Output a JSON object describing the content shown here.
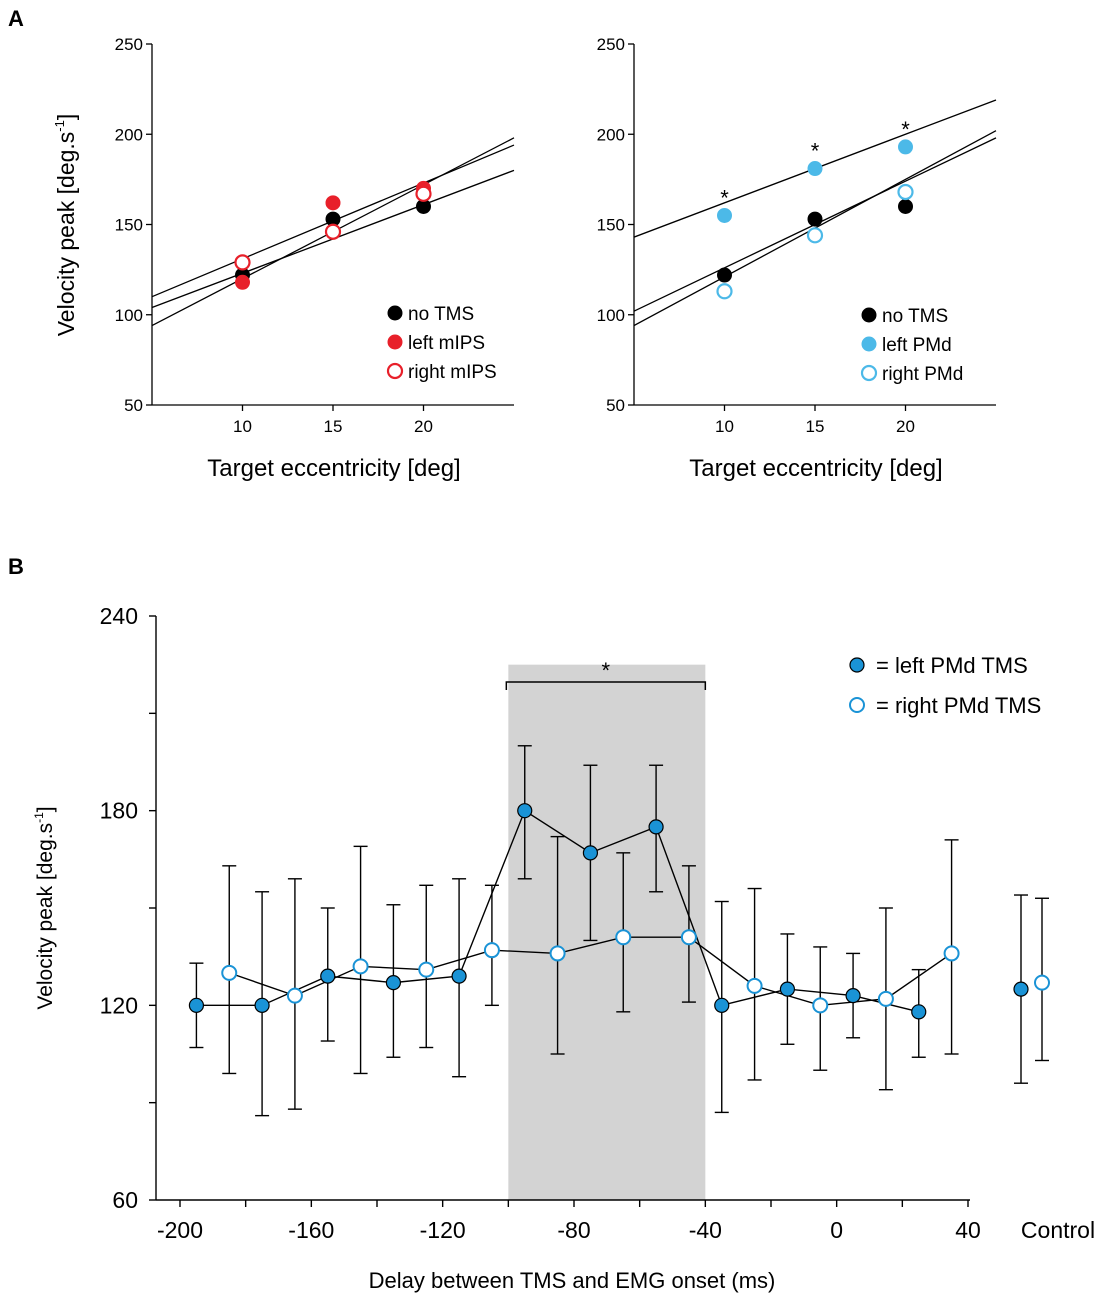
{
  "panel_labels": {
    "a": "A",
    "b": "B"
  },
  "colors": {
    "red": "#e8202a",
    "light_blue": "#4cb9e8",
    "mid_blue": "#1a93d6",
    "shade": "#d3d3d3"
  },
  "chart_data": [
    {
      "type": "scatter",
      "panel": "A-left",
      "xlabel": "Target eccentricity [deg]",
      "ylabel": "Velocity peak [deg.s",
      "ylabel_sup": "-1",
      "ylabel_end": "]",
      "xlim": [
        5,
        25
      ],
      "ylim": [
        50,
        250
      ],
      "xticks": [
        "10",
        "15",
        "20"
      ],
      "yticks": [
        "50",
        "100",
        "150",
        "200",
        "250"
      ],
      "x": [
        10,
        15,
        20
      ],
      "series": [
        {
          "name": "no TMS",
          "style": "filled",
          "color": "#000000",
          "values": [
            122,
            153,
            160
          ],
          "fit": [
            3.8,
            85
          ]
        },
        {
          "name": "left mIPS",
          "style": "filled",
          "color": "#e8202a",
          "values": [
            118,
            162,
            170
          ],
          "fit": [
            5.2,
            68
          ]
        },
        {
          "name": "right mIPS",
          "style": "open",
          "color": "#e8202a",
          "values": [
            129,
            146,
            167
          ],
          "fit": [
            4.2,
            89
          ]
        }
      ],
      "legend": [
        "no TMS",
        "left mIPS",
        "right mIPS"
      ],
      "legend_position": "bottom-right"
    },
    {
      "type": "scatter",
      "panel": "A-right",
      "xlabel": "Target eccentricity [deg]",
      "ylim": [
        50,
        250
      ],
      "xlim": [
        5,
        25
      ],
      "xticks": [
        "10",
        "15",
        "20"
      ],
      "yticks": [
        "50",
        "100",
        "150",
        "200",
        "250"
      ],
      "x": [
        10,
        15,
        20
      ],
      "series": [
        {
          "name": "no TMS",
          "style": "filled",
          "color": "#000000",
          "values": [
            122,
            153,
            160
          ],
          "fit": [
            4.8,
            78
          ]
        },
        {
          "name": "left PMd",
          "style": "filled",
          "color": "#4cb9e8",
          "values": [
            155,
            181,
            193
          ],
          "fit": [
            3.8,
            124
          ]
        },
        {
          "name": "right PMd",
          "style": "open",
          "color": "#4cb9e8",
          "values": [
            113,
            144,
            168
          ],
          "fit": [
            5.4,
            67
          ]
        }
      ],
      "significance": [
        {
          "x": 10,
          "label": "*"
        },
        {
          "x": 15,
          "label": "*"
        },
        {
          "x": 20,
          "label": "*"
        }
      ],
      "legend": [
        "no TMS",
        "left PMd",
        "right PMd"
      ],
      "legend_position": "bottom-right"
    },
    {
      "type": "line",
      "panel": "B",
      "xlabel": "Delay between TMS and EMG onset (ms)",
      "ylabel": "Velocity peak [deg.s",
      "ylabel_sup": "-1",
      "ylabel_end": "]",
      "xlim": [
        -205,
        40
      ],
      "ylim": [
        60,
        240
      ],
      "xticks": [
        "-200",
        "-160",
        "-120",
        "-80",
        "-40",
        "0",
        "40"
      ],
      "extra_tick": "Control",
      "yticks": [
        "60",
        "120",
        "180",
        "240"
      ],
      "shaded_range": [
        -100,
        -40
      ],
      "bracket_label": "*",
      "series": [
        {
          "name": "= left PMd TMS",
          "style": "filled",
          "x": [
            -195,
            -175,
            -155,
            -135,
            -115,
            -95,
            -75,
            -55,
            -35,
            -15,
            5,
            25
          ],
          "values": [
            120,
            120,
            129,
            127,
            129,
            180,
            167,
            175,
            120,
            125,
            123,
            118
          ],
          "err_low": [
            107,
            86,
            109,
            104,
            98,
            159,
            140,
            155,
            87,
            108,
            110,
            104
          ],
          "err_high": [
            133,
            155,
            150,
            151,
            159,
            200,
            194,
            194,
            152,
            142,
            136,
            131
          ],
          "control": {
            "value": 125,
            "err_low": 96,
            "err_high": 154
          }
        },
        {
          "name": "= right PMd TMS",
          "style": "open",
          "x": [
            -185,
            -165,
            -145,
            -125,
            -105,
            -85,
            -65,
            -45,
            -25,
            -5,
            15,
            35
          ],
          "values": [
            130,
            123,
            132,
            131,
            137,
            136,
            141,
            141,
            126,
            120,
            122,
            136
          ],
          "err_low": [
            99,
            88,
            99,
            107,
            120,
            105,
            118,
            121,
            97,
            100,
            94,
            105
          ],
          "err_high": [
            163,
            159,
            169,
            157,
            157,
            172,
            167,
            163,
            156,
            138,
            150,
            171
          ],
          "control": {
            "value": 127,
            "err_low": 103,
            "err_high": 153
          }
        }
      ],
      "legend": [
        "= left PMd TMS",
        "= right PMd TMS"
      ],
      "legend_position": "top-right"
    }
  ]
}
